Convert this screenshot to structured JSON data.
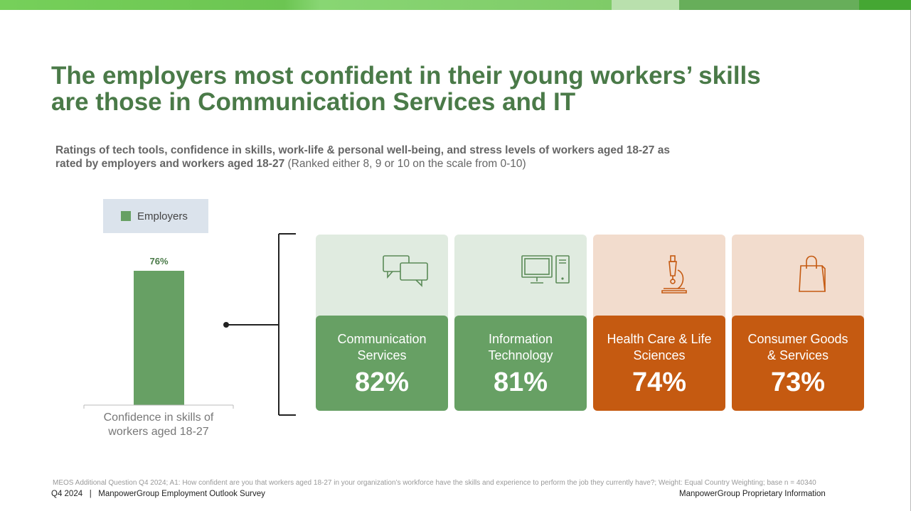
{
  "title": "The employers most confident in their young workers’ skills are those in Communication Services and IT",
  "subtitle_bold": "Ratings of tech tools, confidence in skills, work-life & personal well-being, and stress levels of workers aged 18-27 as rated by employers and workers aged 18-27",
  "subtitle_rest": " (Ranked either 8, 9 or 10 on the scale from 0-10)",
  "chart_data": {
    "type": "bar",
    "categories": [
      "Confidence in skills of workers aged 18-27"
    ],
    "series": [
      {
        "name": "Employers",
        "values": [
          76
        ]
      }
    ],
    "data_labels": [
      "76%"
    ],
    "ylim": [
      0,
      100
    ],
    "legend": "top",
    "grid": false,
    "color": "#67a064"
  },
  "tiles": [
    {
      "name": "Communication Services",
      "value": "82%",
      "icon": "chat-bubbles-icon",
      "theme": "green"
    },
    {
      "name": "Information Technology",
      "value": "81%",
      "icon": "computer-icon",
      "theme": "green"
    },
    {
      "name": "Health Care & Life Sciences",
      "value": "74%",
      "icon": "microscope-icon",
      "theme": "orange"
    },
    {
      "name": "Consumer Goods & Services",
      "value": "73%",
      "icon": "shopping-bag-icon",
      "theme": "orange"
    }
  ],
  "colors": {
    "title": "#4a7a48",
    "green": "#67a064",
    "green_light": "#e0ebe0",
    "orange": "#c55a11",
    "orange_light": "#f2dccd"
  },
  "footer": {
    "note": "MEOS Additional Question Q4 2024; A1: How confident are you that workers aged 18-27 in your organization’s workforce have the skills and experience to perform the job they currently have?; Weight: Equal Country Weighting; base n = 40340",
    "left": "Q4 2024   |   ManpowerGroup Employment Outlook Survey",
    "right": "ManpowerGroup Proprietary Information"
  }
}
